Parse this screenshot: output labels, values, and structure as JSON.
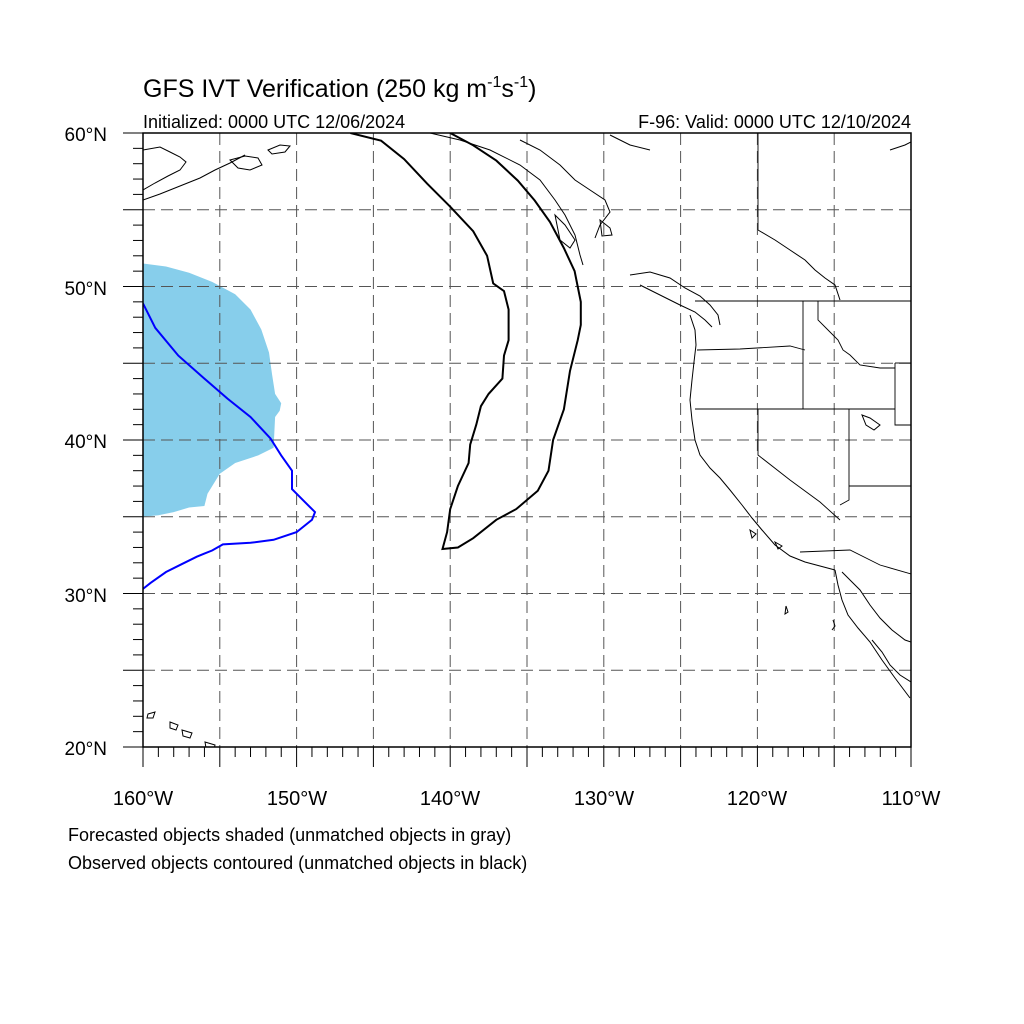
{
  "title": {
    "text_before": "GFS IVT Verification (250 kg m",
    "sup1": "-1",
    "mid": "s",
    "sup2": "-1",
    "text_after": ")"
  },
  "initialized": "Initialized: 0000 UTC 12/06/2024",
  "valid": "F-96: Valid: 0000 UTC 12/10/2024",
  "lat_labels": [
    "60°N",
    "50°N",
    "40°N",
    "30°N",
    "20°N"
  ],
  "lon_labels": [
    "160°W",
    "150°W",
    "140°W",
    "130°W",
    "120°W",
    "110°W"
  ],
  "legend": {
    "forecast": "Forecasted objects shaded (unmatched objects in gray)",
    "observed": "Observed objects contoured (unmatched objects in black)"
  },
  "colors": {
    "forecast_fill": "#87ceeb",
    "matched_contour": "#0000ff",
    "unmatched_contour": "#000000",
    "grid": "#555555"
  },
  "map": {
    "lon_range": [
      -160,
      -110
    ],
    "lat_range": [
      20,
      60
    ],
    "grid_lon_step": 5,
    "grid_lat_step": 5,
    "grid_style": "dashed"
  },
  "objects": {
    "forecast_shaded": [
      [
        -160,
        51.5
      ],
      [
        -158.5,
        51.3
      ],
      [
        -157,
        50.9
      ],
      [
        -155.5,
        50.3
      ],
      [
        -154,
        49.5
      ],
      [
        -153,
        48.5
      ],
      [
        -152.3,
        47.2
      ],
      [
        -151.8,
        45.7
      ],
      [
        -151.6,
        44.3
      ],
      [
        -151.4,
        43
      ],
      [
        -151,
        42.4
      ],
      [
        -151.1,
        41.9
      ],
      [
        -151.4,
        41.5
      ],
      [
        -151.5,
        39.5
      ],
      [
        -152.5,
        39
      ],
      [
        -154,
        38.5
      ],
      [
        -155,
        37.8
      ],
      [
        -155.8,
        36.5
      ],
      [
        -156,
        35.7
      ],
      [
        -157,
        35.6
      ],
      [
        -158,
        35.3
      ],
      [
        -159,
        35.1
      ],
      [
        -160,
        35
      ]
    ],
    "observed_matched": [
      [
        -160,
        48.9
      ],
      [
        -159.2,
        47.3
      ],
      [
        -157.7,
        45.5
      ],
      [
        -156,
        44
      ],
      [
        -154.5,
        42.7
      ],
      [
        -153,
        41.5
      ],
      [
        -151.7,
        40.1
      ],
      [
        -151,
        39
      ],
      [
        -150.3,
        38
      ],
      [
        -150.3,
        36.8
      ],
      [
        -149.5,
        36
      ],
      [
        -148.8,
        35.3
      ],
      [
        -149,
        34.8
      ],
      [
        -150,
        34
      ],
      [
        -151.5,
        33.5
      ],
      [
        -153,
        33.3
      ],
      [
        -154.8,
        33.2
      ],
      [
        -155.5,
        32.8
      ],
      [
        -156,
        32.6
      ],
      [
        -156.5,
        32.4
      ],
      [
        -157.5,
        31.9
      ],
      [
        -158.5,
        31.4
      ],
      [
        -159.5,
        30.7
      ],
      [
        -160,
        30.3
      ]
    ],
    "observed_unmatched": [
      [
        -146.5,
        60
      ],
      [
        -144.5,
        59.5
      ],
      [
        -143,
        58.3
      ],
      [
        -141.5,
        56.7
      ],
      [
        -140,
        55.2
      ],
      [
        -138.5,
        53.6
      ],
      [
        -137.6,
        52
      ],
      [
        -137.2,
        50.2
      ],
      [
        -136.5,
        49.7
      ],
      [
        -136.2,
        48.5
      ],
      [
        -136.2,
        46.5
      ],
      [
        -136.5,
        45.5
      ],
      [
        -136.6,
        44
      ],
      [
        -137.5,
        43
      ],
      [
        -138,
        42.2
      ],
      [
        -138.3,
        41
      ],
      [
        -138.7,
        39.7
      ],
      [
        -138.8,
        38.5
      ],
      [
        -139.5,
        37
      ],
      [
        -140,
        35.5
      ],
      [
        -140.2,
        34
      ],
      [
        -140.5,
        32.9
      ],
      [
        -139.5,
        33
      ],
      [
        -138.5,
        33.6
      ],
      [
        -137,
        34.8
      ],
      [
        -135.7,
        35.5
      ],
      [
        -134.3,
        36.7
      ],
      [
        -133.6,
        38
      ],
      [
        -133.3,
        40
      ],
      [
        -132.6,
        42
      ],
      [
        -132.2,
        44.5
      ],
      [
        -131.7,
        46.5
      ],
      [
        -131.5,
        47.5
      ],
      [
        -131.5,
        49
      ],
      [
        -131.7,
        50
      ],
      [
        -131.9,
        51
      ],
      [
        -132.6,
        52.5
      ],
      [
        -133.5,
        54.2
      ],
      [
        -134.5,
        55.6
      ],
      [
        -135.6,
        56.9
      ],
      [
        -137,
        58.2
      ],
      [
        -138.5,
        59.2
      ],
      [
        -140,
        60
      ]
    ]
  }
}
